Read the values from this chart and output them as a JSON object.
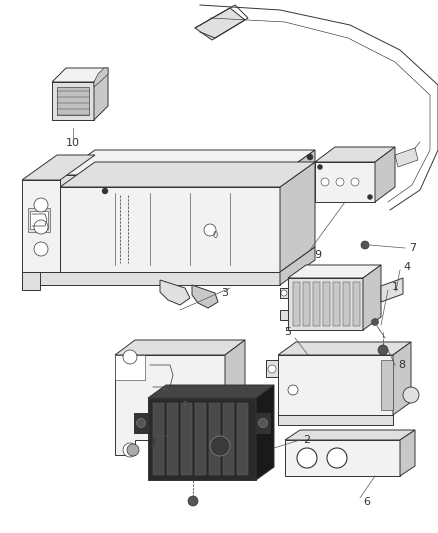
{
  "background_color": "#ffffff",
  "line_color": "#333333",
  "fig_width": 4.38,
  "fig_height": 5.33,
  "dpi": 100,
  "fc_light": "#f2f2f2",
  "fc_mid": "#e0e0e0",
  "fc_dark": "#c8c8c8",
  "fc_darker": "#b0b0b0",
  "fc_black": "#2a2a2a",
  "lw_main": 0.7,
  "lw_thin": 0.45,
  "lw_leader": 0.5
}
